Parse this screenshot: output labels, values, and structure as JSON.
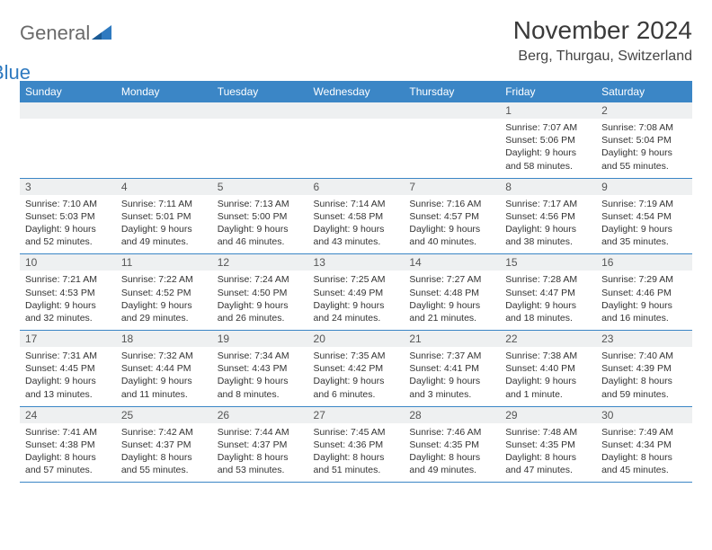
{
  "logo": {
    "general": "General",
    "blue": "Blue"
  },
  "title": "November 2024",
  "location": "Berg, Thurgau, Switzerland",
  "header_row_bg": "#3b86c6",
  "header_row_fg": "#ffffff",
  "daynum_bg": "#eef0f1",
  "border_color": "#3b86c6",
  "days_of_week": [
    "Sunday",
    "Monday",
    "Tuesday",
    "Wednesday",
    "Thursday",
    "Friday",
    "Saturday"
  ],
  "weeks": [
    [
      null,
      null,
      null,
      null,
      null,
      {
        "n": "1",
        "sunrise": "Sunrise: 7:07 AM",
        "sunset": "Sunset: 5:06 PM",
        "daylight": "Daylight: 9 hours and 58 minutes."
      },
      {
        "n": "2",
        "sunrise": "Sunrise: 7:08 AM",
        "sunset": "Sunset: 5:04 PM",
        "daylight": "Daylight: 9 hours and 55 minutes."
      }
    ],
    [
      {
        "n": "3",
        "sunrise": "Sunrise: 7:10 AM",
        "sunset": "Sunset: 5:03 PM",
        "daylight": "Daylight: 9 hours and 52 minutes."
      },
      {
        "n": "4",
        "sunrise": "Sunrise: 7:11 AM",
        "sunset": "Sunset: 5:01 PM",
        "daylight": "Daylight: 9 hours and 49 minutes."
      },
      {
        "n": "5",
        "sunrise": "Sunrise: 7:13 AM",
        "sunset": "Sunset: 5:00 PM",
        "daylight": "Daylight: 9 hours and 46 minutes."
      },
      {
        "n": "6",
        "sunrise": "Sunrise: 7:14 AM",
        "sunset": "Sunset: 4:58 PM",
        "daylight": "Daylight: 9 hours and 43 minutes."
      },
      {
        "n": "7",
        "sunrise": "Sunrise: 7:16 AM",
        "sunset": "Sunset: 4:57 PM",
        "daylight": "Daylight: 9 hours and 40 minutes."
      },
      {
        "n": "8",
        "sunrise": "Sunrise: 7:17 AM",
        "sunset": "Sunset: 4:56 PM",
        "daylight": "Daylight: 9 hours and 38 minutes."
      },
      {
        "n": "9",
        "sunrise": "Sunrise: 7:19 AM",
        "sunset": "Sunset: 4:54 PM",
        "daylight": "Daylight: 9 hours and 35 minutes."
      }
    ],
    [
      {
        "n": "10",
        "sunrise": "Sunrise: 7:21 AM",
        "sunset": "Sunset: 4:53 PM",
        "daylight": "Daylight: 9 hours and 32 minutes."
      },
      {
        "n": "11",
        "sunrise": "Sunrise: 7:22 AM",
        "sunset": "Sunset: 4:52 PM",
        "daylight": "Daylight: 9 hours and 29 minutes."
      },
      {
        "n": "12",
        "sunrise": "Sunrise: 7:24 AM",
        "sunset": "Sunset: 4:50 PM",
        "daylight": "Daylight: 9 hours and 26 minutes."
      },
      {
        "n": "13",
        "sunrise": "Sunrise: 7:25 AM",
        "sunset": "Sunset: 4:49 PM",
        "daylight": "Daylight: 9 hours and 24 minutes."
      },
      {
        "n": "14",
        "sunrise": "Sunrise: 7:27 AM",
        "sunset": "Sunset: 4:48 PM",
        "daylight": "Daylight: 9 hours and 21 minutes."
      },
      {
        "n": "15",
        "sunrise": "Sunrise: 7:28 AM",
        "sunset": "Sunset: 4:47 PM",
        "daylight": "Daylight: 9 hours and 18 minutes."
      },
      {
        "n": "16",
        "sunrise": "Sunrise: 7:29 AM",
        "sunset": "Sunset: 4:46 PM",
        "daylight": "Daylight: 9 hours and 16 minutes."
      }
    ],
    [
      {
        "n": "17",
        "sunrise": "Sunrise: 7:31 AM",
        "sunset": "Sunset: 4:45 PM",
        "daylight": "Daylight: 9 hours and 13 minutes."
      },
      {
        "n": "18",
        "sunrise": "Sunrise: 7:32 AM",
        "sunset": "Sunset: 4:44 PM",
        "daylight": "Daylight: 9 hours and 11 minutes."
      },
      {
        "n": "19",
        "sunrise": "Sunrise: 7:34 AM",
        "sunset": "Sunset: 4:43 PM",
        "daylight": "Daylight: 9 hours and 8 minutes."
      },
      {
        "n": "20",
        "sunrise": "Sunrise: 7:35 AM",
        "sunset": "Sunset: 4:42 PM",
        "daylight": "Daylight: 9 hours and 6 minutes."
      },
      {
        "n": "21",
        "sunrise": "Sunrise: 7:37 AM",
        "sunset": "Sunset: 4:41 PM",
        "daylight": "Daylight: 9 hours and 3 minutes."
      },
      {
        "n": "22",
        "sunrise": "Sunrise: 7:38 AM",
        "sunset": "Sunset: 4:40 PM",
        "daylight": "Daylight: 9 hours and 1 minute."
      },
      {
        "n": "23",
        "sunrise": "Sunrise: 7:40 AM",
        "sunset": "Sunset: 4:39 PM",
        "daylight": "Daylight: 8 hours and 59 minutes."
      }
    ],
    [
      {
        "n": "24",
        "sunrise": "Sunrise: 7:41 AM",
        "sunset": "Sunset: 4:38 PM",
        "daylight": "Daylight: 8 hours and 57 minutes."
      },
      {
        "n": "25",
        "sunrise": "Sunrise: 7:42 AM",
        "sunset": "Sunset: 4:37 PM",
        "daylight": "Daylight: 8 hours and 55 minutes."
      },
      {
        "n": "26",
        "sunrise": "Sunrise: 7:44 AM",
        "sunset": "Sunset: 4:37 PM",
        "daylight": "Daylight: 8 hours and 53 minutes."
      },
      {
        "n": "27",
        "sunrise": "Sunrise: 7:45 AM",
        "sunset": "Sunset: 4:36 PM",
        "daylight": "Daylight: 8 hours and 51 minutes."
      },
      {
        "n": "28",
        "sunrise": "Sunrise: 7:46 AM",
        "sunset": "Sunset: 4:35 PM",
        "daylight": "Daylight: 8 hours and 49 minutes."
      },
      {
        "n": "29",
        "sunrise": "Sunrise: 7:48 AM",
        "sunset": "Sunset: 4:35 PM",
        "daylight": "Daylight: 8 hours and 47 minutes."
      },
      {
        "n": "30",
        "sunrise": "Sunrise: 7:49 AM",
        "sunset": "Sunset: 4:34 PM",
        "daylight": "Daylight: 8 hours and 45 minutes."
      }
    ]
  ]
}
